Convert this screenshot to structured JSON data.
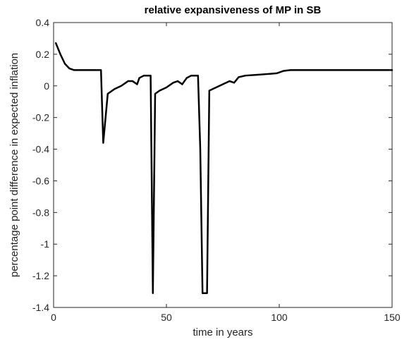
{
  "chart_data": {
    "type": "line",
    "title": "relative expansiveness of MP in SB",
    "xlabel": "time in years",
    "ylabel": "percentage point difference in expected inflation",
    "xlim": [
      0,
      150
    ],
    "ylim": [
      -1.4,
      0.4
    ],
    "xticks": [
      0,
      50,
      100,
      150
    ],
    "yticks": [
      0.4,
      0.2,
      0,
      -0.2,
      -0.4,
      -0.6,
      -0.8,
      -1,
      -1.2,
      -1.4
    ],
    "xtick_labels": [
      "0",
      "50",
      "100",
      "150"
    ],
    "ytick_labels": [
      "0.4",
      "0.2",
      "0",
      "-0.2",
      "-0.4",
      "-0.6",
      "-0.8",
      "-1",
      "-1.2",
      "-1.4"
    ],
    "grid": false,
    "legend": null,
    "series": [
      {
        "color": "#000000",
        "x": [
          1,
          3,
          5,
          7,
          9,
          12,
          16,
          19,
          21,
          22,
          24,
          27,
          30,
          33,
          35,
          37,
          38,
          40,
          43,
          44,
          45,
          47,
          50,
          53,
          55,
          57,
          59,
          61,
          64,
          65,
          66,
          68,
          69,
          72,
          75,
          78,
          80,
          82,
          85,
          90,
          95,
          99,
          102,
          105,
          110,
          120,
          130,
          140,
          150
        ],
        "y": [
          0.27,
          0.2,
          0.14,
          0.11,
          0.1,
          0.1,
          0.1,
          0.1,
          0.1,
          -0.36,
          -0.05,
          -0.02,
          0.0,
          0.03,
          0.03,
          0.01,
          0.05,
          0.065,
          0.065,
          -1.31,
          -0.05,
          -0.03,
          -0.01,
          0.02,
          0.03,
          0.01,
          0.05,
          0.065,
          0.065,
          -0.4,
          -1.31,
          -1.31,
          -0.03,
          -0.01,
          0.01,
          0.03,
          0.02,
          0.055,
          0.065,
          0.07,
          0.075,
          0.08,
          0.095,
          0.1,
          0.1,
          0.1,
          0.1,
          0.1,
          0.1
        ]
      }
    ]
  }
}
